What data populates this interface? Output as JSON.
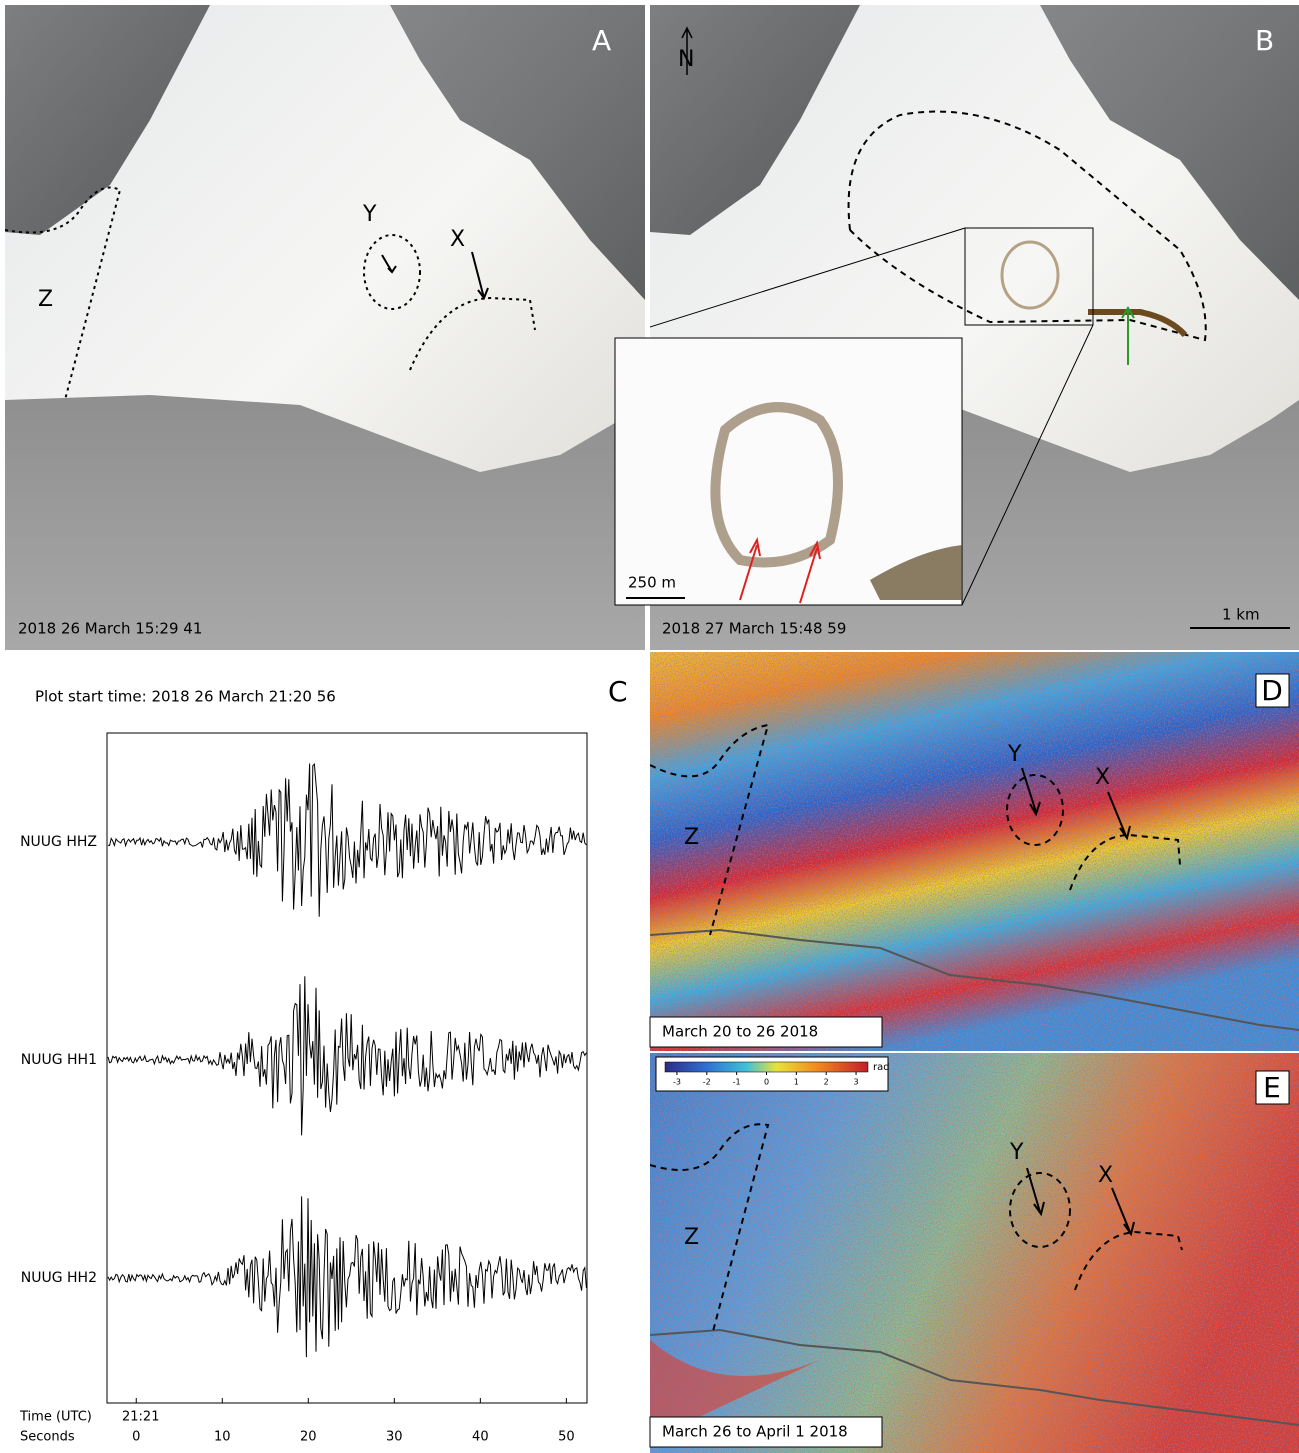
{
  "figure": {
    "A": {
      "label": "A",
      "markers": [
        "Y",
        "X",
        "Z"
      ],
      "timestamp": "2018 26 March    15:29 41"
    },
    "B": {
      "label": "B",
      "north": "N",
      "timestamp": "2018 27 March    15:48 59",
      "scale": "1 km",
      "inset_scale": "250 m"
    },
    "C": {
      "label": "C",
      "start": "Plot start time: 2018  26 March    21:20 56",
      "stations": [
        "NUUG HHZ",
        "NUUG HH1",
        "NUUG HH2"
      ],
      "time_label": "Time (UTC)",
      "time_value": "21:21",
      "seconds_label": "Seconds",
      "xlim": [
        -3.4,
        52.4
      ],
      "xticks": [
        0,
        10,
        20,
        30,
        40,
        50
      ]
    },
    "D": {
      "label": "D",
      "markers": [
        "Y",
        "X",
        "Z"
      ],
      "caption": "March 20 to 26 2018"
    },
    "E": {
      "label": "E",
      "markers": [
        "Y",
        "X",
        "Z"
      ],
      "caption": "March 26 to April 1 2018",
      "clim": [
        -3.4,
        3.4
      ],
      "cticks": [
        -3,
        -2,
        -1,
        0,
        1,
        2,
        3
      ],
      "unit": "rad"
    }
  }
}
